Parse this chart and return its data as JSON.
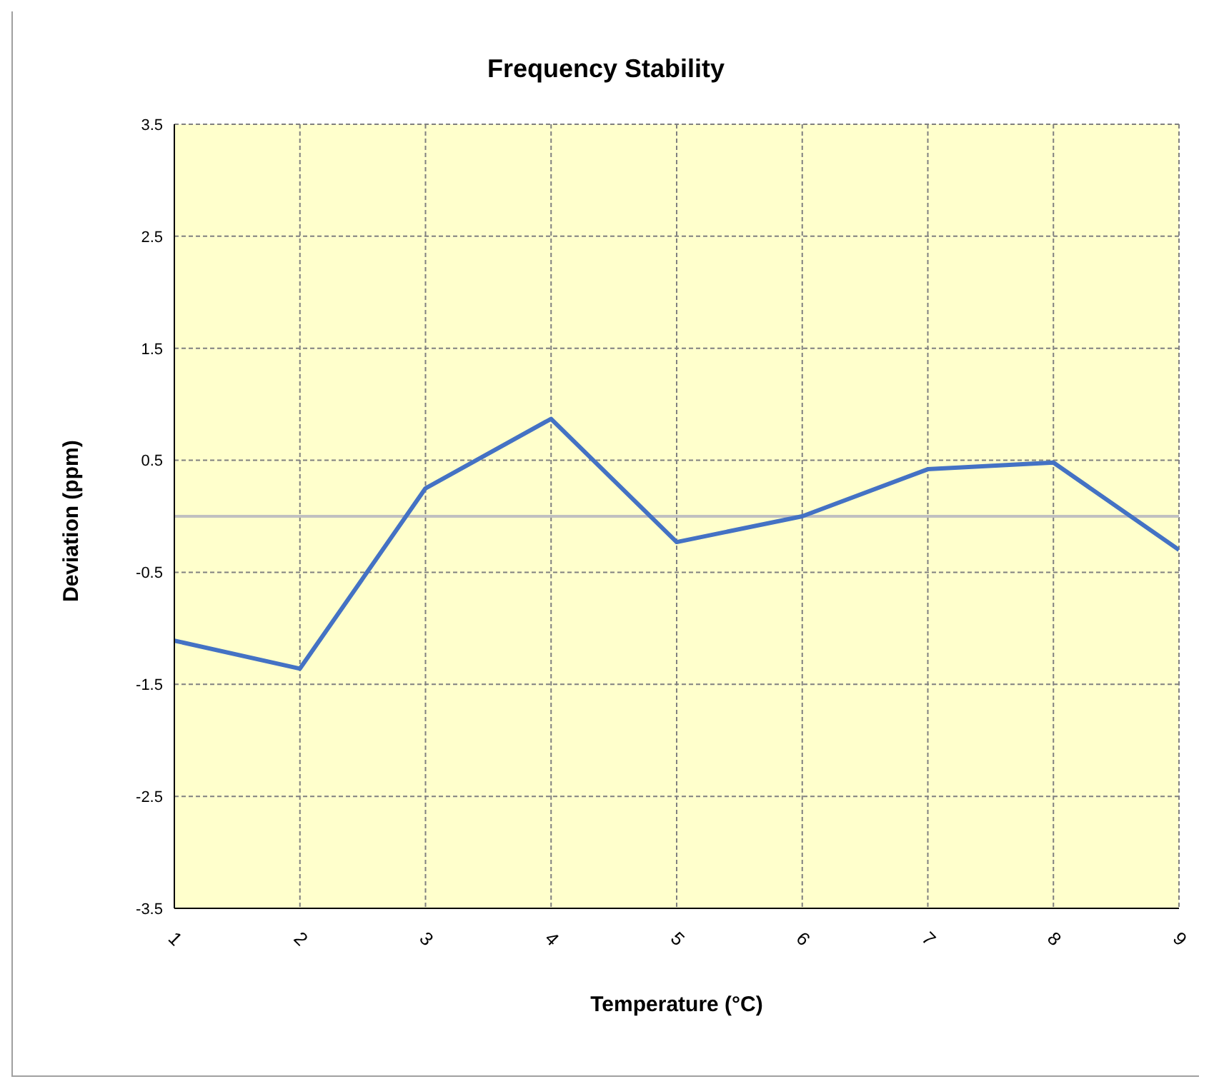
{
  "chart_data": {
    "type": "line",
    "title": "Frequency Stability",
    "xlabel": "Temperature (°C)",
    "ylabel": "Deviation  (ppm)",
    "categories": [
      "1",
      "2",
      "3",
      "4",
      "5",
      "6",
      "7",
      "8",
      "9"
    ],
    "series": [
      {
        "color": "#4472c4",
        "values": [
          -1.11,
          -1.36,
          0.25,
          0.87,
          -0.23,
          0.0,
          0.42,
          0.48,
          -0.3
        ]
      }
    ],
    "ylim": [
      -3.5,
      3.5
    ],
    "yticks": [
      -3.5,
      -2.5,
      -1.5,
      -0.5,
      0.5,
      1.5,
      2.5,
      3.5
    ],
    "ref_lines": [
      {
        "axis": "y",
        "value": 0,
        "color": "#c0c0c0"
      }
    ],
    "grid": true,
    "marker": "none",
    "line_style": "solid"
  }
}
